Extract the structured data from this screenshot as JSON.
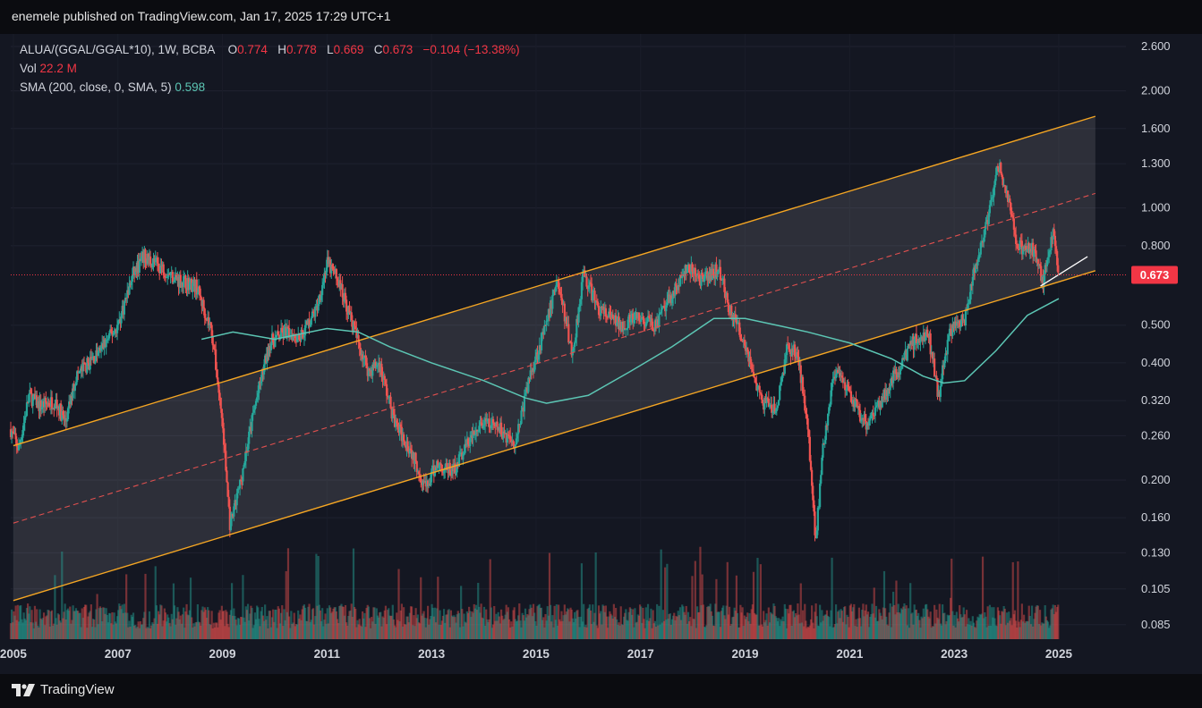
{
  "header": {
    "publish_text": "enemele published on TradingView.com, Jan 17, 2025 17:29 UTC+1"
  },
  "legend": {
    "symbol": "ALUA/(GGAL/GGAL*10), 1W, BCBA",
    "o_label": "O",
    "o_value": "0.774",
    "h_label": "H",
    "h_value": "0.778",
    "l_label": "L",
    "l_value": "0.669",
    "c_label": "C",
    "c_value": "0.673",
    "change": "−0.104 (−13.38%)",
    "vol_label": "Vol",
    "vol_value": "22.2 M",
    "sma_label": "SMA (200, close, 0, SMA, 5)",
    "sma_value": "0.598"
  },
  "footer": {
    "brand": "TradingView"
  },
  "colors": {
    "background": "#141722",
    "up": "#26a69a",
    "down": "#ef5350",
    "channel": "#f5a623",
    "sma": "#5cc6b4",
    "price_label_bg": "#f23645"
  },
  "chart_data": {
    "type": "candlestick",
    "scale": "log",
    "ylim": [
      0.078,
      2.8
    ],
    "y_ticks": [
      "2.600",
      "2.000",
      "1.600",
      "1.300",
      "1.000",
      "0.800",
      "0.500",
      "0.400",
      "0.320",
      "0.260",
      "0.200",
      "0.160",
      "0.130",
      "0.105",
      "0.085"
    ],
    "x_ticks": [
      "2005",
      "2007",
      "2009",
      "2011",
      "2013",
      "2015",
      "2017",
      "2019",
      "2021",
      "2023",
      "2025"
    ],
    "last_price": "0.673",
    "price_path": [
      [
        2004.95,
        0.27
      ],
      [
        2005.1,
        0.24
      ],
      [
        2005.3,
        0.33
      ],
      [
        2005.5,
        0.31
      ],
      [
        2005.8,
        0.32
      ],
      [
        2006.0,
        0.28
      ],
      [
        2006.2,
        0.37
      ],
      [
        2006.6,
        0.42
      ],
      [
        2007.0,
        0.5
      ],
      [
        2007.3,
        0.68
      ],
      [
        2007.5,
        0.75
      ],
      [
        2007.8,
        0.71
      ],
      [
        2008.1,
        0.66
      ],
      [
        2008.5,
        0.63
      ],
      [
        2008.8,
        0.48
      ],
      [
        2009.0,
        0.28
      ],
      [
        2009.15,
        0.15
      ],
      [
        2009.35,
        0.2
      ],
      [
        2009.6,
        0.3
      ],
      [
        2009.9,
        0.45
      ],
      [
        2010.2,
        0.48
      ],
      [
        2010.5,
        0.47
      ],
      [
        2010.8,
        0.55
      ],
      [
        2011.0,
        0.72
      ],
      [
        2011.2,
        0.66
      ],
      [
        2011.4,
        0.55
      ],
      [
        2011.6,
        0.45
      ],
      [
        2011.8,
        0.38
      ],
      [
        2012.0,
        0.4
      ],
      [
        2012.3,
        0.28
      ],
      [
        2012.6,
        0.24
      ],
      [
        2012.9,
        0.19
      ],
      [
        2013.1,
        0.22
      ],
      [
        2013.4,
        0.21
      ],
      [
        2013.7,
        0.25
      ],
      [
        2014.0,
        0.28
      ],
      [
        2014.3,
        0.27
      ],
      [
        2014.6,
        0.25
      ],
      [
        2014.9,
        0.38
      ],
      [
        2015.2,
        0.5
      ],
      [
        2015.4,
        0.66
      ],
      [
        2015.7,
        0.42
      ],
      [
        2015.9,
        0.68
      ],
      [
        2016.2,
        0.55
      ],
      [
        2016.6,
        0.5
      ],
      [
        2016.9,
        0.52
      ],
      [
        2017.3,
        0.5
      ],
      [
        2017.6,
        0.6
      ],
      [
        2017.9,
        0.7
      ],
      [
        2018.2,
        0.65
      ],
      [
        2018.5,
        0.7
      ],
      [
        2018.7,
        0.55
      ],
      [
        2019.0,
        0.45
      ],
      [
        2019.3,
        0.32
      ],
      [
        2019.6,
        0.3
      ],
      [
        2019.8,
        0.44
      ],
      [
        2020.0,
        0.42
      ],
      [
        2020.2,
        0.28
      ],
      [
        2020.35,
        0.14
      ],
      [
        2020.5,
        0.25
      ],
      [
        2020.7,
        0.38
      ],
      [
        2021.0,
        0.33
      ],
      [
        2021.3,
        0.28
      ],
      [
        2021.6,
        0.32
      ],
      [
        2021.9,
        0.38
      ],
      [
        2022.2,
        0.45
      ],
      [
        2022.5,
        0.48
      ],
      [
        2022.7,
        0.33
      ],
      [
        2022.9,
        0.48
      ],
      [
        2023.2,
        0.52
      ],
      [
        2023.4,
        0.7
      ],
      [
        2023.6,
        0.88
      ],
      [
        2023.85,
        1.3
      ],
      [
        2024.0,
        1.1
      ],
      [
        2024.2,
        0.8
      ],
      [
        2024.5,
        0.78
      ],
      [
        2024.7,
        0.65
      ],
      [
        2024.9,
        0.86
      ],
      [
        2025.0,
        0.673
      ]
    ],
    "channel": {
      "upper": [
        [
          2005.0,
          0.245
        ],
        [
          2025.7,
          1.72
        ]
      ],
      "lower": [
        [
          2005.0,
          0.098
        ],
        [
          2025.7,
          0.69
        ]
      ],
      "mid": [
        [
          2005.0,
          0.155
        ],
        [
          2025.7,
          1.09
        ]
      ]
    },
    "sma": [
      [
        2008.6,
        0.46
      ],
      [
        2009.2,
        0.48
      ],
      [
        2010.0,
        0.46
      ],
      [
        2011.0,
        0.49
      ],
      [
        2011.6,
        0.48
      ],
      [
        2012.2,
        0.44
      ],
      [
        2013.0,
        0.4
      ],
      [
        2014.0,
        0.36
      ],
      [
        2014.8,
        0.325
      ],
      [
        2015.2,
        0.315
      ],
      [
        2016.0,
        0.33
      ],
      [
        2016.8,
        0.38
      ],
      [
        2017.6,
        0.44
      ],
      [
        2018.4,
        0.52
      ],
      [
        2019.0,
        0.52
      ],
      [
        2019.6,
        0.5
      ],
      [
        2020.2,
        0.48
      ],
      [
        2021.0,
        0.45
      ],
      [
        2021.8,
        0.41
      ],
      [
        2022.4,
        0.37
      ],
      [
        2022.8,
        0.355
      ],
      [
        2023.2,
        0.36
      ],
      [
        2023.8,
        0.43
      ],
      [
        2024.4,
        0.53
      ],
      [
        2025.0,
        0.585
      ]
    ],
    "trendline": [
      [
        2024.65,
        0.63
      ],
      [
        2025.55,
        0.75
      ]
    ]
  }
}
